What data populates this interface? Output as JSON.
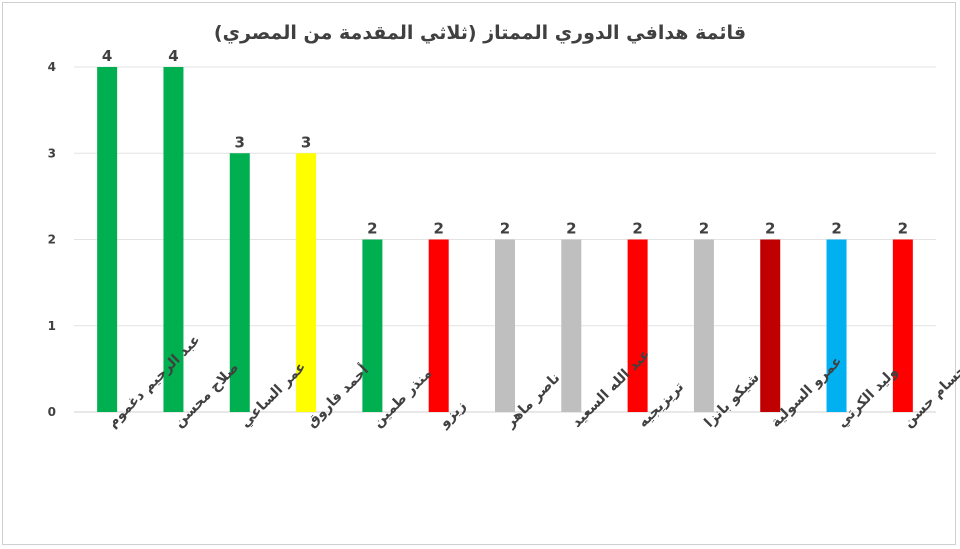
{
  "chart_data": {
    "type": "bar",
    "title": "قائمة هدافي الدوري الممتاز (ثلاثي المقدمة من المصري)",
    "xlabel": "",
    "ylabel": "",
    "ylim": [
      0,
      4
    ],
    "yticks": [
      "0",
      "1",
      "2",
      "3",
      "4"
    ],
    "grid": true,
    "legend": "none",
    "categories": [
      "عبد الرحيم دغموم",
      "صلاح محسن",
      "عمر الساعي",
      "أحمد فاروق",
      "منذر طمين",
      "زيزو",
      "ناصر ماهر",
      "عبد الله السعيد",
      "تريزيجيه",
      "شيكو بانزا",
      "عمرو السولية",
      "وليد الكرتي",
      "حسام حسن"
    ],
    "values": [
      4,
      4,
      3,
      3,
      2,
      2,
      2,
      2,
      2,
      2,
      2,
      2,
      2
    ],
    "data_labels": [
      "4",
      "4",
      "3",
      "3",
      "2",
      "2",
      "2",
      "2",
      "2",
      "2",
      "2",
      "2",
      "2"
    ],
    "colors": [
      "#00b050",
      "#00b050",
      "#00b050",
      "#ffff00",
      "#00b050",
      "#ff0000",
      "#bfbfbf",
      "#bfbfbf",
      "#ff0000",
      "#bfbfbf",
      "#c00000",
      "#00b0f0",
      "#ff0000"
    ]
  }
}
